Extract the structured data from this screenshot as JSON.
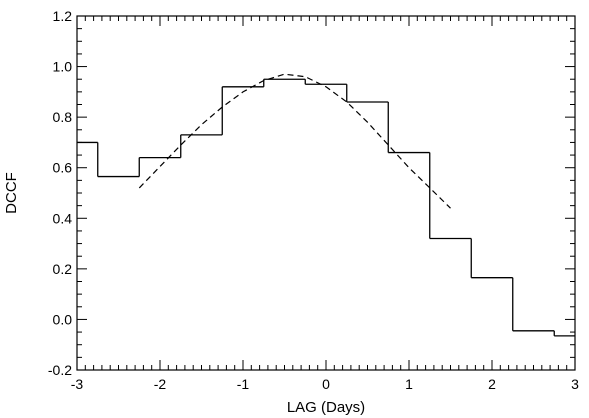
{
  "chart_data": {
    "type": "line",
    "title": "",
    "xlabel": "LAG (Days)",
    "ylabel": "DCCF",
    "xlim": [
      -3,
      3
    ],
    "ylim": [
      -0.2,
      1.2
    ],
    "x_ticks": [
      -3,
      -2,
      -1,
      0,
      1,
      2,
      3
    ],
    "x_tick_labels": [
      "-3",
      "-2",
      "-1",
      "0",
      "1",
      "2",
      "3"
    ],
    "y_ticks": [
      -0.2,
      0.0,
      0.2,
      0.4,
      0.6,
      0.8,
      1.0,
      1.2
    ],
    "y_tick_labels": [
      "-0.2",
      "0.0",
      "0.2",
      "0.4",
      "0.6",
      "0.8",
      "1.0",
      "1.2"
    ],
    "grid": false,
    "legend": "none",
    "series": [
      {
        "style": "solid-step",
        "bins": [
          {
            "x0": -3.0,
            "x1": -2.75,
            "y": 0.7
          },
          {
            "x0": -2.75,
            "x1": -2.25,
            "y": 0.565
          },
          {
            "x0": -2.25,
            "x1": -1.75,
            "y": 0.64
          },
          {
            "x0": -1.75,
            "x1": -1.25,
            "y": 0.73
          },
          {
            "x0": -1.25,
            "x1": -0.75,
            "y": 0.92
          },
          {
            "x0": -0.75,
            "x1": -0.25,
            "y": 0.95
          },
          {
            "x0": -0.25,
            "x1": 0.25,
            "y": 0.93
          },
          {
            "x0": 0.25,
            "x1": 0.75,
            "y": 0.86
          },
          {
            "x0": 0.75,
            "x1": 1.25,
            "y": 0.66
          },
          {
            "x0": 1.25,
            "x1": 1.75,
            "y": 0.32
          },
          {
            "x0": 1.75,
            "x1": 2.25,
            "y": 0.165
          },
          {
            "x0": 2.25,
            "x1": 2.75,
            "y": -0.045
          },
          {
            "x0": 2.75,
            "x1": 3.0,
            "y": -0.065
          }
        ]
      },
      {
        "style": "dashed-fit",
        "x": [
          -2.25,
          -2.0,
          -1.75,
          -1.5,
          -1.25,
          -1.0,
          -0.75,
          -0.5,
          -0.25,
          0.0,
          0.25,
          0.5,
          0.75,
          1.0,
          1.25,
          1.5
        ],
        "y": [
          0.52,
          0.605,
          0.69,
          0.77,
          0.84,
          0.9,
          0.945,
          0.97,
          0.96,
          0.92,
          0.86,
          0.78,
          0.69,
          0.6,
          0.52,
          0.44
        ]
      }
    ]
  }
}
